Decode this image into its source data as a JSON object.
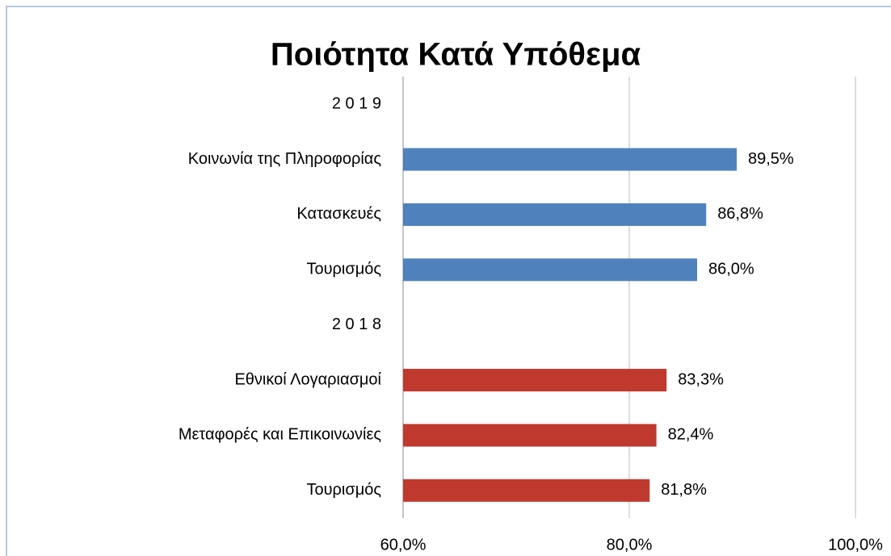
{
  "chart_data": {
    "type": "barh",
    "title": "Ποιότητα Κατά Υπόθεμα",
    "categories": [
      "2 0 1 9",
      "Κοινωνία της Πληροφορίας",
      "Κατασκευές",
      "Τουρισμός",
      "2 0 1 8",
      "Εθνικοί Λογαριασμοί",
      "Μεταφορές και Επικοινωνίες",
      "Τουρισμός"
    ],
    "values": [
      null,
      89.5,
      86.8,
      86.0,
      null,
      83.3,
      82.4,
      81.8
    ],
    "value_labels": [
      null,
      "89,5%",
      "86,8%",
      "86,0%",
      null,
      "83,3%",
      "82,4%",
      "81,8%"
    ],
    "colors": [
      null,
      "#4f81bd",
      "#4f81bd",
      "#4f81bd",
      null,
      "#c0392f",
      "#c0392f",
      "#c0392f"
    ],
    "xlim": [
      60,
      100
    ],
    "xticks": [
      {
        "value": 60,
        "label": "60,0%"
      },
      {
        "value": 80,
        "label": "80,0%"
      },
      {
        "value": 100,
        "label": "100,0%"
      }
    ],
    "grid": true
  }
}
